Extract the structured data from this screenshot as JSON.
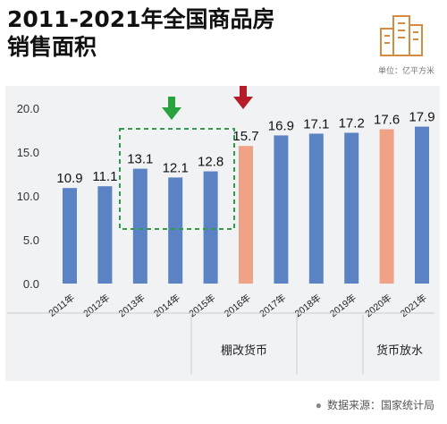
{
  "header": {
    "title_line1": "2011-2021年全国商品房",
    "title_line2": "销售面积",
    "unit": "单位：亿平方米"
  },
  "footer": {
    "source": "数据来源：国家统计局"
  },
  "colors": {
    "bar": "#5b82c3",
    "highlight": "#f0a286",
    "up_arrow": "#2aa33e",
    "down_arrow": "#b71c2a",
    "box": "#2f9b4a"
  },
  "icons": {
    "logo": "city-buildings-icon",
    "green_arrow": "arrow-down-green-icon",
    "red_arrow": "arrow-down-red-icon"
  },
  "chart_data": {
    "type": "bar",
    "categories": [
      "2011年",
      "2012年",
      "2013年",
      "2014年",
      "2015年",
      "2016年",
      "2017年",
      "2018年",
      "2019年",
      "2020年",
      "2021年"
    ],
    "values": [
      10.9,
      11.1,
      13.1,
      12.1,
      12.8,
      15.7,
      16.9,
      17.1,
      17.2,
      17.6,
      17.9
    ],
    "highlight_indices": [
      5,
      9
    ],
    "yticks": [
      "0.0",
      "5.0",
      "10.0",
      "15.0",
      "20.0"
    ],
    "ylim": [
      0,
      20
    ],
    "grid": false,
    "group_labels": [
      "棚改货币",
      "货币放水"
    ]
  }
}
